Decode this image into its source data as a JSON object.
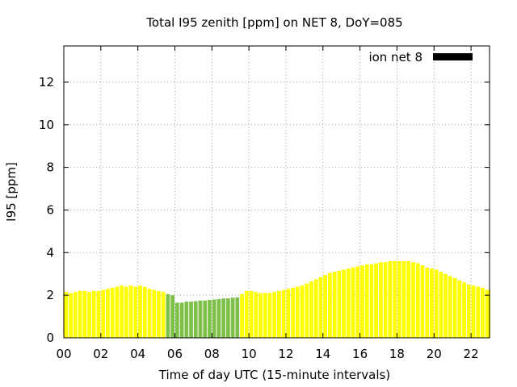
{
  "chart_data": {
    "type": "bar",
    "title": "Total I95 zenith [ppm] on NET 8, DoY=085",
    "xlabel": "Time of day UTC (15-minute intervals)",
    "ylabel": "I95 [ppm]",
    "xlim": [
      0,
      23
    ],
    "ylim": [
      0,
      13.7
    ],
    "xticks": [
      "00",
      "02",
      "04",
      "06",
      "08",
      "10",
      "12",
      "14",
      "16",
      "18",
      "20",
      "22"
    ],
    "yticks": [
      "0",
      "2",
      "4",
      "6",
      "8",
      "10",
      "12"
    ],
    "grid": true,
    "legend": {
      "position": "top-right",
      "label": "ion net 8",
      "color": "#000000"
    },
    "colors": {
      "normal": "#ffff00",
      "highlight": "#7dc04a"
    },
    "interval_hours": 0.25,
    "values": [
      2.15,
      2.1,
      2.15,
      2.2,
      2.2,
      2.15,
      2.2,
      2.2,
      2.25,
      2.3,
      2.35,
      2.4,
      2.45,
      2.4,
      2.45,
      2.4,
      2.45,
      2.4,
      2.3,
      2.25,
      2.2,
      2.15,
      2.05,
      2.0,
      1.65,
      1.65,
      1.7,
      1.7,
      1.72,
      1.75,
      1.75,
      1.78,
      1.8,
      1.82,
      1.85,
      1.85,
      1.88,
      1.9,
      2.05,
      2.2,
      2.2,
      2.15,
      2.1,
      2.1,
      2.1,
      2.15,
      2.2,
      2.25,
      2.3,
      2.35,
      2.4,
      2.45,
      2.55,
      2.65,
      2.75,
      2.85,
      2.95,
      3.05,
      3.1,
      3.15,
      3.2,
      3.25,
      3.3,
      3.35,
      3.4,
      3.45,
      3.45,
      3.5,
      3.55,
      3.55,
      3.6,
      3.6,
      3.6,
      3.6,
      3.6,
      3.55,
      3.5,
      3.4,
      3.3,
      3.25,
      3.2,
      3.1,
      3.0,
      2.9,
      2.8,
      2.7,
      2.6,
      2.5,
      2.45,
      2.4,
      2.35,
      2.25,
      2.2
    ],
    "highlight_range": [
      22,
      37
    ]
  }
}
